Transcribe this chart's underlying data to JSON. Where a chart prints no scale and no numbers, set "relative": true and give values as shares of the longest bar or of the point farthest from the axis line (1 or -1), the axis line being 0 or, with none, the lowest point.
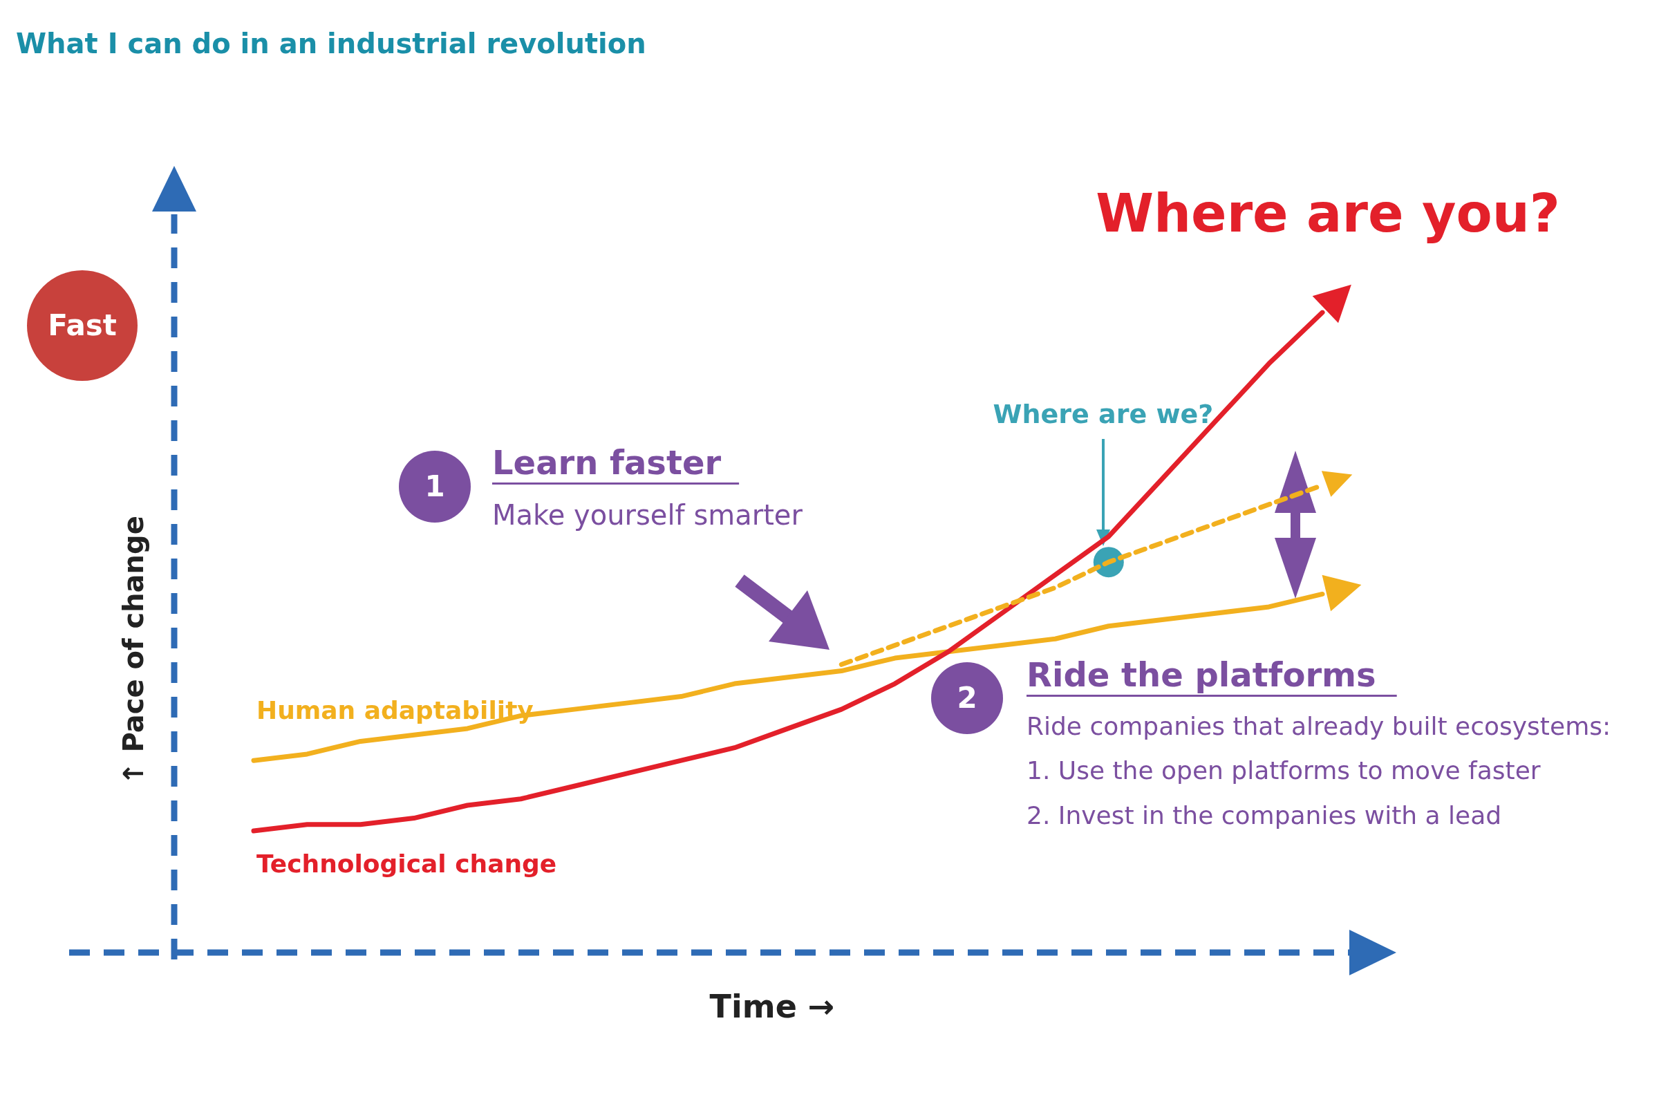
{
  "chart_data": {
    "type": "line",
    "title": "What I can do in an industrial revolution",
    "xlabel": "Time →",
    "ylabel": "↑ Pace of change",
    "relative": true,
    "marker": "none",
    "categories": [
      null,
      null,
      null,
      null,
      null,
      null,
      null,
      null,
      null,
      null,
      null,
      null,
      null,
      null,
      null,
      null,
      null,
      null,
      null,
      null,
      null
    ],
    "series": [
      {
        "name": "Human adaptability",
        "color": "#f2b01e",
        "line_style": "solid",
        "values": [
          0.3,
          0.31,
          0.33,
          0.34,
          0.35,
          0.37,
          0.38,
          0.39,
          0.4,
          0.42,
          0.43,
          0.44,
          0.46,
          0.47,
          0.48,
          0.49,
          0.51,
          0.52,
          0.53,
          0.54,
          0.56
        ]
      },
      {
        "name": "Technological change",
        "color": "#e3202a",
        "line_style": "solid",
        "values": [
          0.19,
          0.2,
          0.2,
          0.21,
          0.23,
          0.24,
          0.26,
          0.28,
          0.3,
          0.32,
          0.35,
          0.38,
          0.42,
          0.47,
          0.53,
          0.59,
          0.65,
          0.74,
          0.83,
          0.92,
          1
        ]
      },
      {
        "color": "#f2b01e",
        "line_style": "dashed",
        "values": [
          null,
          null,
          null,
          null,
          null,
          null,
          null,
          null,
          null,
          null,
          null,
          0.45,
          0.48,
          0.51,
          0.54,
          0.57,
          0.61,
          0.64,
          0.67,
          0.7,
          0.73
        ]
      }
    ],
    "annotations": [
      "Where are you?",
      "Learn faster",
      "Make yourself smarter",
      "Ride the platforms",
      "Ride companies that already built ecosystems:",
      "1. Use the open platforms to move faster",
      "2. Invest in the companies with a lead",
      "Where are we?",
      "Fast",
      "1",
      "2"
    ]
  }
}
